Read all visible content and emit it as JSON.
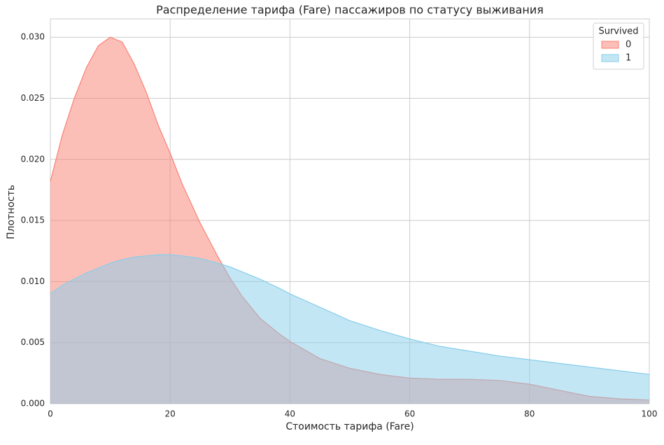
{
  "chart_data": {
    "type": "area",
    "title": "Распределение тарифа (Fare) пассажиров по статусу выживания",
    "x_label": "Стоимость тарифа (Fare)",
    "y_label": "Плотность",
    "x": [
      0,
      2,
      4,
      6,
      8,
      10,
      12,
      14,
      16,
      18,
      20,
      22,
      25,
      28,
      30,
      32,
      35,
      38,
      40,
      45,
      50,
      55,
      60,
      65,
      70,
      75,
      80,
      85,
      90,
      95,
      100
    ],
    "series": [
      {
        "name": "0",
        "color": "#fa8072",
        "values": [
          0.0182,
          0.022,
          0.025,
          0.0275,
          0.0293,
          0.03,
          0.0296,
          0.0278,
          0.0255,
          0.0228,
          0.0205,
          0.018,
          0.0148,
          0.012,
          0.0103,
          0.0088,
          0.007,
          0.0058,
          0.0051,
          0.0037,
          0.0029,
          0.0024,
          0.0021,
          0.002,
          0.002,
          0.0019,
          0.0016,
          0.0011,
          0.0006,
          0.0004,
          0.0003
        ]
      },
      {
        "name": "1",
        "color": "#87ceeb",
        "values": [
          0.009,
          0.0097,
          0.0102,
          0.0107,
          0.0111,
          0.0115,
          0.0118,
          0.012,
          0.0121,
          0.0122,
          0.0122,
          0.0121,
          0.0119,
          0.0115,
          0.0112,
          0.0108,
          0.0102,
          0.0095,
          0.009,
          0.0079,
          0.0068,
          0.006,
          0.0053,
          0.0047,
          0.0043,
          0.0039,
          0.0036,
          0.0033,
          0.003,
          0.0027,
          0.0024
        ]
      }
    ],
    "legend_title": "Survived",
    "legend": "upper right",
    "xlim": [
      0,
      100
    ],
    "xticks": [
      0,
      20,
      40,
      60,
      80,
      100
    ],
    "ylim": [
      0,
      0.0315
    ],
    "yticks": [
      {
        "value": 0,
        "label": "0.000"
      },
      0.005,
      {
        "value": 0.01,
        "label": "0.010"
      },
      0.015,
      {
        "value": 0.02,
        "label": "0.020"
      },
      0.025,
      {
        "value": 0.03,
        "label": "0.030"
      }
    ],
    "grid": true
  }
}
